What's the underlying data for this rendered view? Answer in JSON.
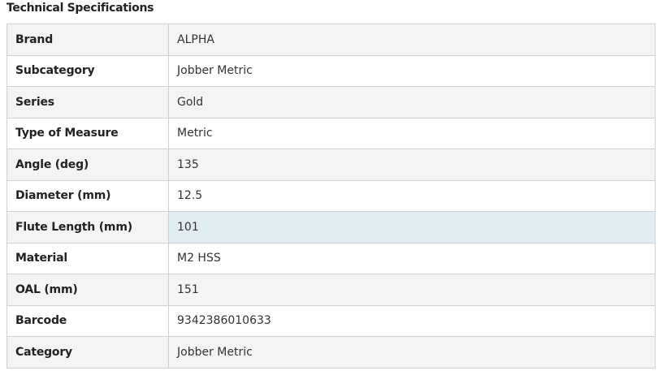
{
  "title": "Technical Specifications",
  "colors": {
    "highlight": "#e1edf3",
    "stripe": "#f4f4f4",
    "border": "#d0d0d0"
  },
  "rows": [
    {
      "label": "Brand",
      "value": "ALPHA"
    },
    {
      "label": "Subcategory",
      "value": "Jobber Metric"
    },
    {
      "label": "Series",
      "value": "Gold"
    },
    {
      "label": "Type of Measure",
      "value": "Metric"
    },
    {
      "label": "Angle (deg)",
      "value": "135"
    },
    {
      "label": "Diameter (mm)",
      "value": "12.5"
    },
    {
      "label": "Flute Length (mm)",
      "value": "101",
      "highlighted": true
    },
    {
      "label": "Material",
      "value": "M2 HSS"
    },
    {
      "label": "OAL (mm)",
      "value": "151"
    },
    {
      "label": "Barcode",
      "value": "9342386010633"
    },
    {
      "label": "Category",
      "value": "Jobber Metric"
    }
  ]
}
